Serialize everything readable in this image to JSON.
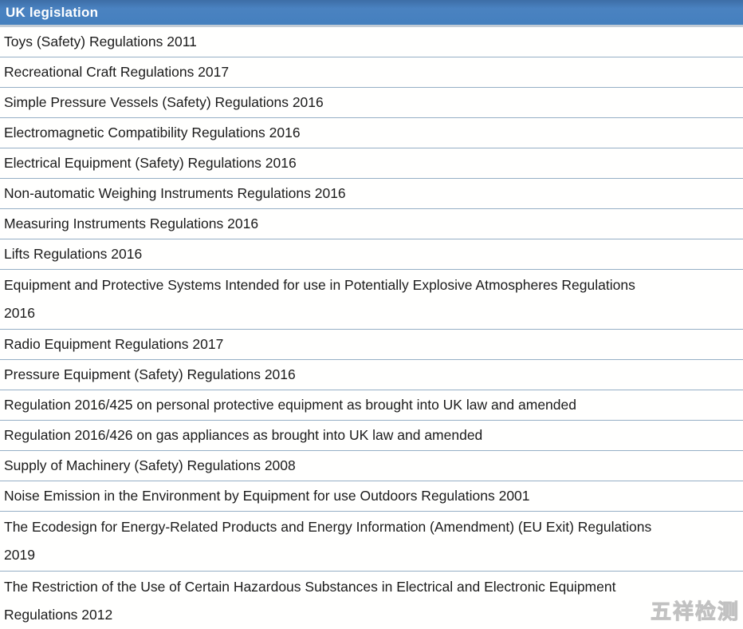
{
  "header": {
    "title": "UK legislation"
  },
  "table": {
    "rows": [
      {
        "lines": [
          "Toys (Safety) Regulations 2011"
        ]
      },
      {
        "lines": [
          "Recreational Craft Regulations 2017"
        ]
      },
      {
        "lines": [
          "Simple Pressure Vessels (Safety) Regulations 2016"
        ]
      },
      {
        "lines": [
          "Electromagnetic Compatibility Regulations 2016"
        ]
      },
      {
        "lines": [
          "Electrical Equipment (Safety) Regulations 2016"
        ]
      },
      {
        "lines": [
          "Non-automatic Weighing Instruments Regulations 2016"
        ]
      },
      {
        "lines": [
          "Measuring Instruments Regulations 2016"
        ]
      },
      {
        "lines": [
          "Lifts Regulations 2016"
        ]
      },
      {
        "lines": [
          "Equipment and Protective Systems Intended for use in Potentially Explosive Atmospheres Regulations",
          "2016"
        ]
      },
      {
        "lines": [
          "Radio Equipment Regulations 2017"
        ]
      },
      {
        "lines": [
          "Pressure Equipment (Safety) Regulations 2016"
        ]
      },
      {
        "lines": [
          "Regulation 2016/425 on personal protective equipment as brought into UK law and amended"
        ]
      },
      {
        "lines": [
          "Regulation 2016/426 on gas appliances as brought into UK law and amended"
        ]
      },
      {
        "lines": [
          "Supply of Machinery (Safety) Regulations 2008"
        ]
      },
      {
        "lines": [
          "Noise Emission in the Environment by Equipment for use Outdoors Regulations 2001"
        ]
      },
      {
        "lines": [
          "The Ecodesign for Energy-Related Products and Energy Information (Amendment) (EU Exit) Regulations",
          "2019"
        ]
      },
      {
        "lines": [
          "The Restriction of the Use of Certain Hazardous Substances in Electrical and Electronic Equipment",
          "Regulations 2012"
        ]
      }
    ]
  },
  "watermark": {
    "text": "五祥检测"
  },
  "colors": {
    "header_bg": "#4580BE",
    "header_text": "#FFFFFF",
    "separator": "#96AFC5",
    "row_text": "#1B1B1B",
    "watermark": "#D0D0D0"
  }
}
